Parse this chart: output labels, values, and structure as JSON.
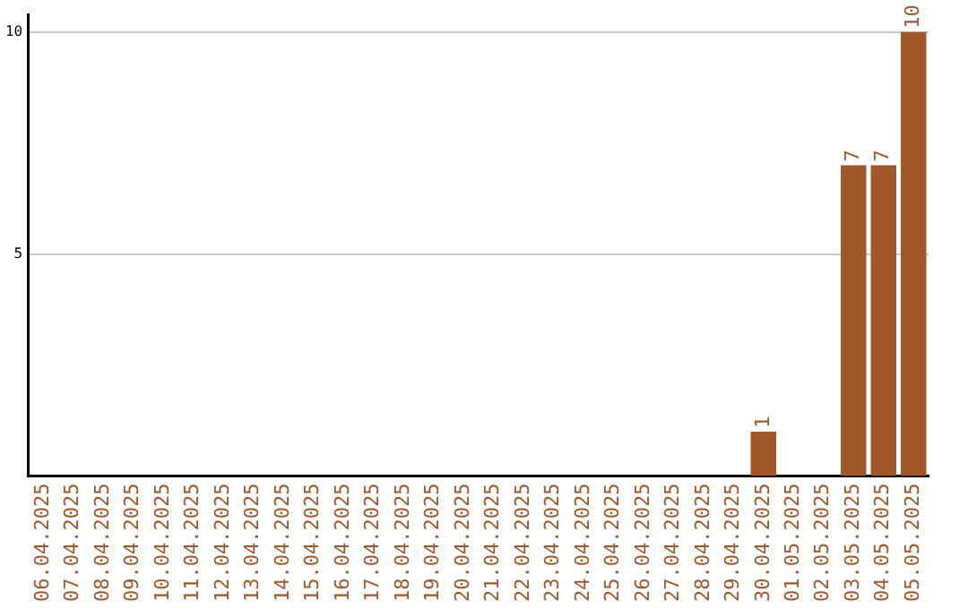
{
  "chart_data": {
    "type": "bar",
    "categories": [
      "06.04.2025",
      "07.04.2025",
      "08.04.2025",
      "09.04.2025",
      "10.04.2025",
      "11.04.2025",
      "12.04.2025",
      "13.04.2025",
      "14.04.2025",
      "15.04.2025",
      "16.04.2025",
      "17.04.2025",
      "18.04.2025",
      "19.04.2025",
      "20.04.2025",
      "21.04.2025",
      "22.04.2025",
      "23.04.2025",
      "24.04.2025",
      "25.04.2025",
      "26.04.2025",
      "27.04.2025",
      "28.04.2025",
      "29.04.2025",
      "30.04.2025",
      "01.05.2025",
      "02.05.2025",
      "03.05.2025",
      "04.05.2025",
      "05.05.2025"
    ],
    "values": [
      0,
      0,
      0,
      0,
      0,
      0,
      0,
      0,
      0,
      0,
      0,
      0,
      0,
      0,
      0,
      0,
      0,
      0,
      0,
      0,
      0,
      0,
      0,
      0,
      1,
      0,
      0,
      7,
      7,
      10
    ],
    "value_labels": [
      null,
      null,
      null,
      null,
      null,
      null,
      null,
      null,
      null,
      null,
      null,
      null,
      null,
      null,
      null,
      null,
      null,
      null,
      null,
      null,
      null,
      null,
      null,
      null,
      "1",
      null,
      null,
      "7",
      "7",
      "10"
    ],
    "color": "#a0572a",
    "ylim": [
      0,
      10.4
    ],
    "yticks": [
      5,
      10
    ],
    "grid": "y",
    "legend": false
  }
}
